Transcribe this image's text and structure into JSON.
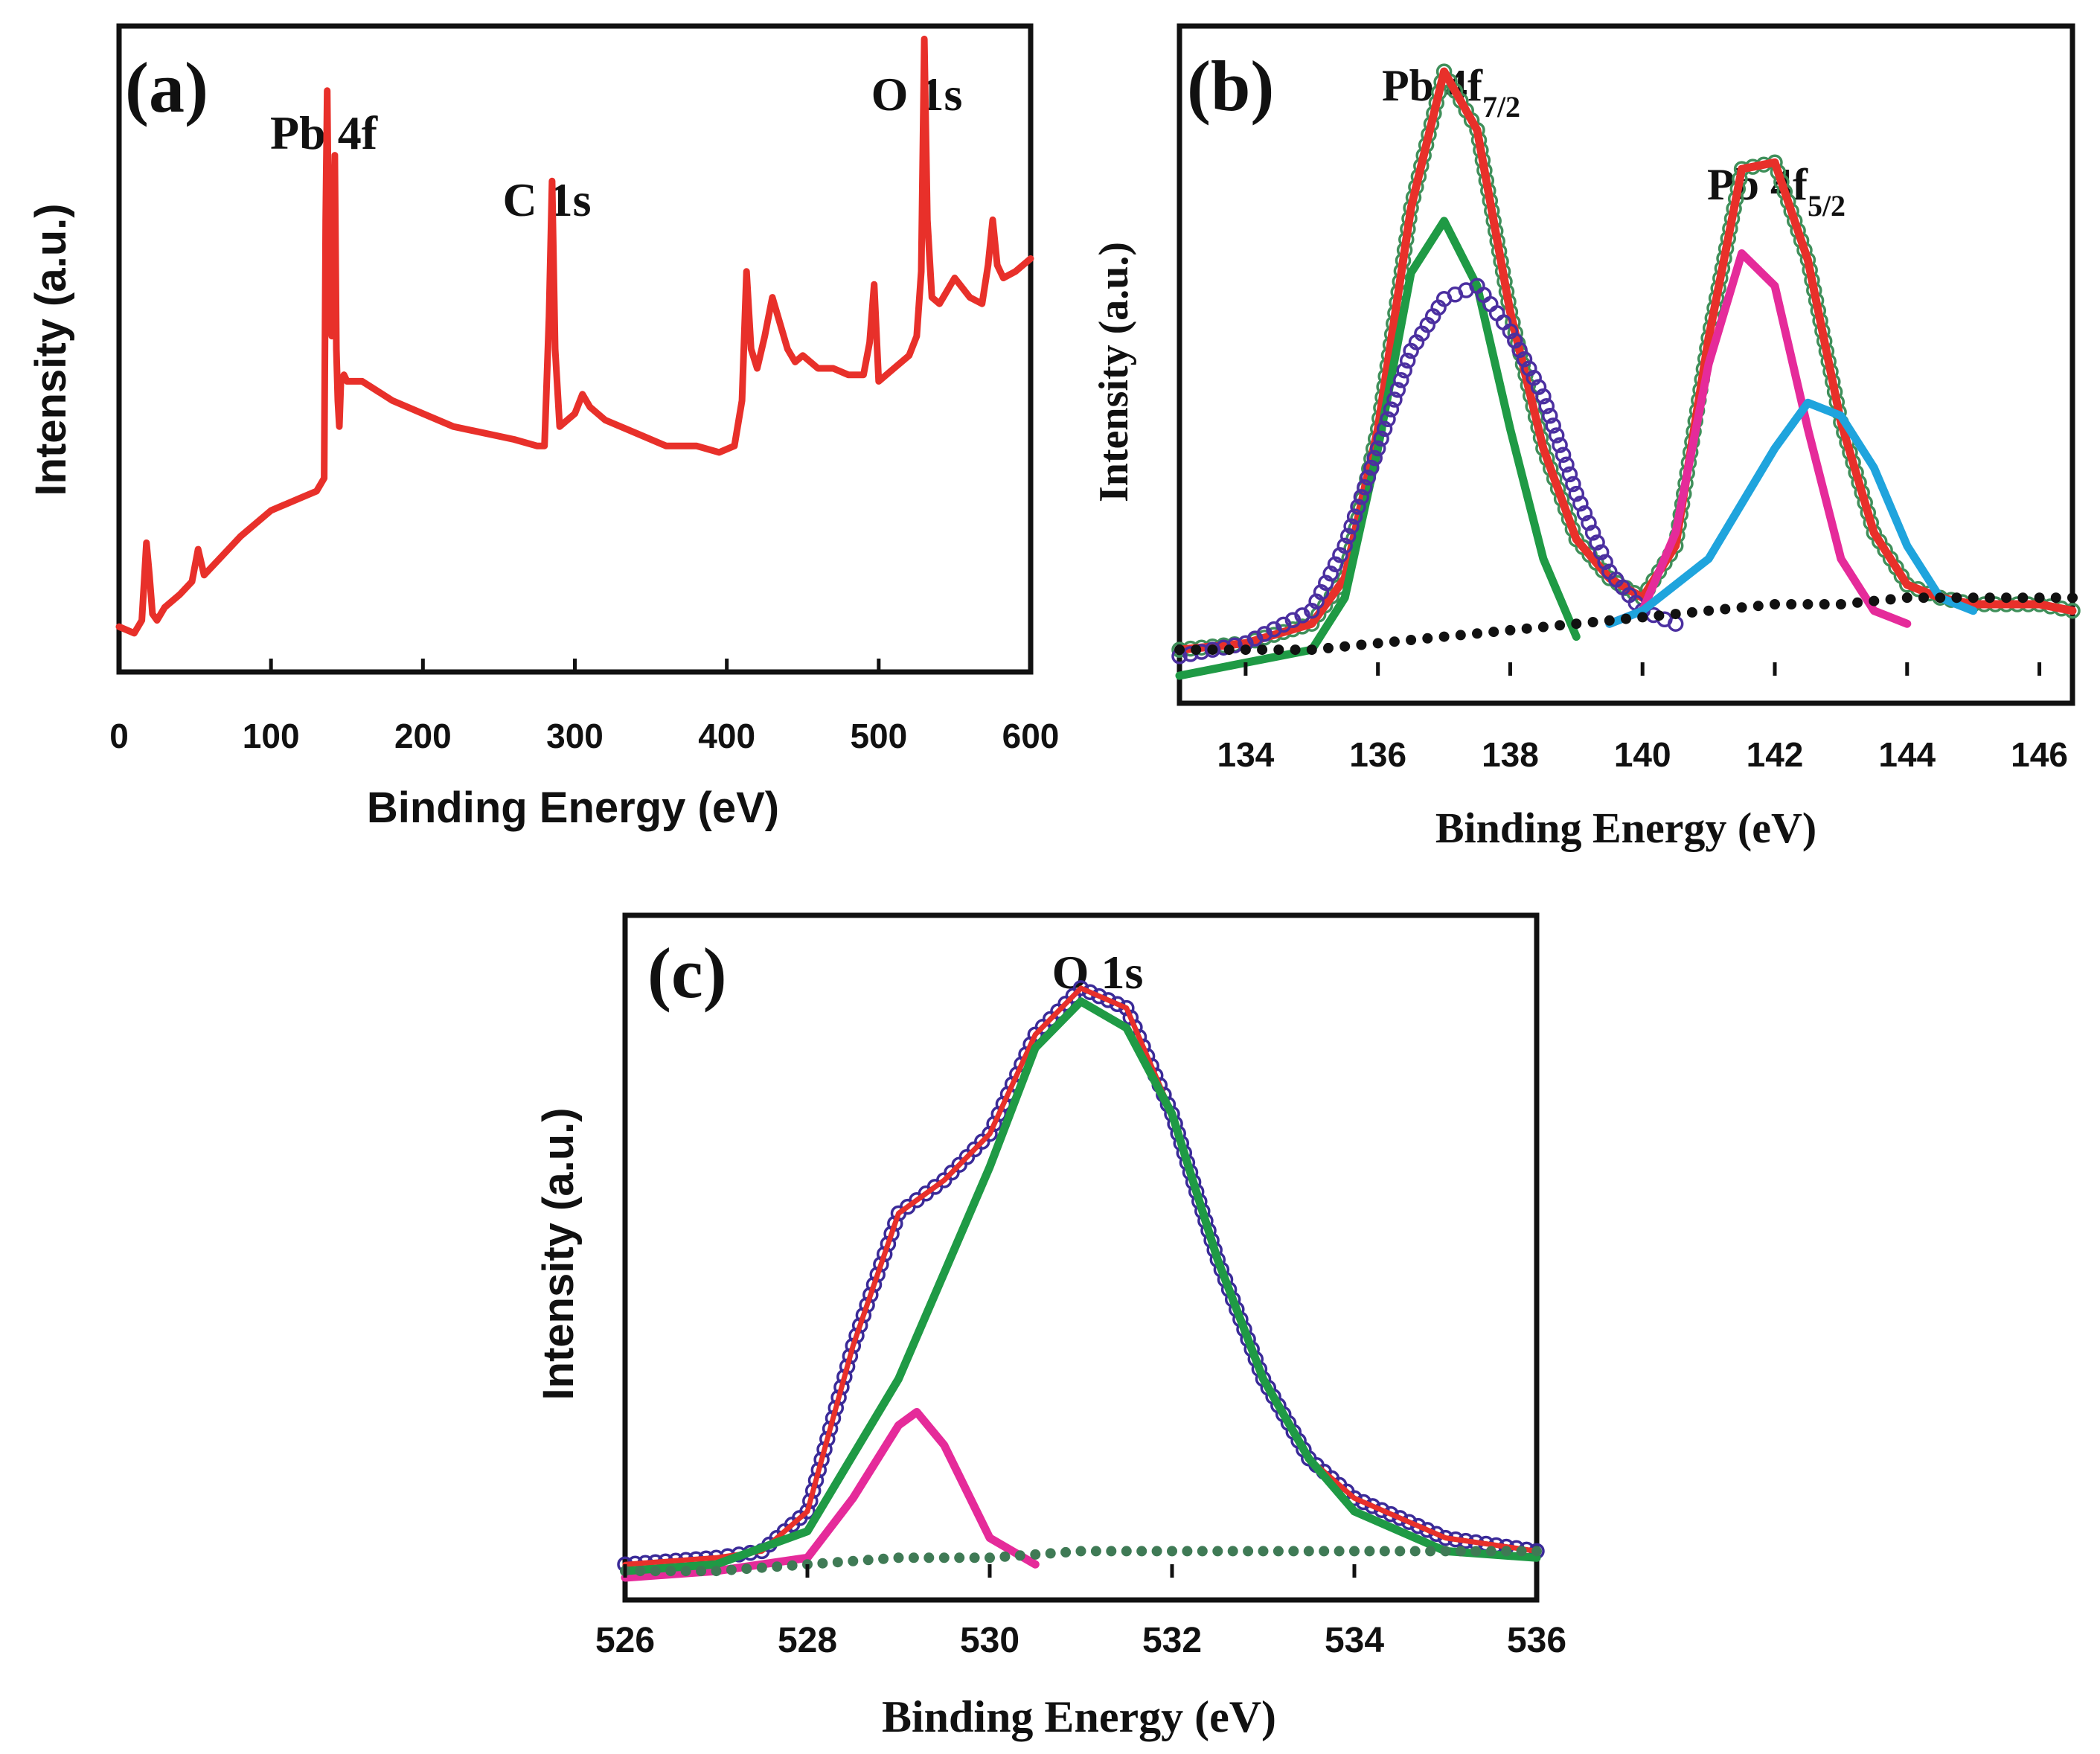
{
  "chart_data": [
    {
      "panel": "(a)",
      "type": "line",
      "title": "",
      "xlabel": "Binding Energy (eV)",
      "ylabel": "Intensity (a.u.)",
      "xlim": [
        0,
        600
      ],
      "ylim": [
        0,
        100
      ],
      "xticks": [
        0,
        100,
        200,
        300,
        400,
        500,
        600
      ],
      "y_tick_labels": false,
      "grid": false,
      "annotations": [
        {
          "text": "Pb 4f",
          "x": 140
        },
        {
          "text": "C 1s",
          "x": 285
        },
        {
          "text": "O 1s",
          "x": 530
        }
      ],
      "series": [
        {
          "name": "survey spectrum",
          "color": "#e8302a",
          "style": "line",
          "x": [
            0,
            10,
            15,
            18,
            20,
            22,
            25,
            30,
            40,
            48,
            52,
            56,
            60,
            80,
            100,
            120,
            130,
            135,
            136,
            137,
            138,
            140,
            142,
            143,
            144,
            145,
            146,
            148,
            150,
            160,
            180,
            200,
            220,
            240,
            260,
            275,
            280,
            283,
            285,
            287,
            290,
            300,
            305,
            310,
            320,
            340,
            360,
            380,
            395,
            405,
            410,
            413,
            416,
            420,
            425,
            430,
            435,
            440,
            445,
            450,
            460,
            470,
            480,
            490,
            494,
            497,
            500,
            510,
            520,
            525,
            528,
            530,
            532,
            535,
            540,
            550,
            560,
            568,
            572,
            575,
            578,
            582,
            590,
            600
          ],
          "values": [
            7,
            6,
            8,
            20,
            15,
            9,
            8,
            10,
            12,
            14,
            19,
            15,
            16,
            21,
            25,
            27,
            28,
            30,
            70,
            90,
            65,
            52,
            80,
            50,
            42,
            38,
            45,
            46,
            45,
            45,
            42,
            40,
            38,
            37,
            36,
            35,
            35,
            55,
            76,
            50,
            38,
            40,
            43,
            41,
            39,
            37,
            35,
            35,
            34,
            35,
            42,
            62,
            50,
            47,
            52,
            58,
            54,
            50,
            48,
            49,
            47,
            47,
            46,
            46,
            51,
            60,
            45,
            47,
            49,
            52,
            62,
            98,
            70,
            58,
            57,
            61,
            58,
            57,
            63,
            70,
            63,
            61,
            62,
            64
          ]
        }
      ]
    },
    {
      "panel": "(b)",
      "type": "line",
      "title": "",
      "xlabel": "Binding Energy (eV)",
      "ylabel": "Intensity (a.u.)",
      "xlim": [
        133,
        146.5
      ],
      "ylim": [
        0,
        100
      ],
      "xticks": [
        134,
        136,
        138,
        140,
        142,
        144,
        146
      ],
      "y_tick_labels": false,
      "grid": false,
      "annotations": [
        {
          "text": "Pb 4f",
          "sub": "7/2",
          "x": 137.1
        },
        {
          "text": "Pb 4f",
          "sub": "5/2",
          "x": 142.0
        }
      ],
      "series": [
        {
          "name": "raw data",
          "color": "#3f8f5a",
          "style": "open-circles",
          "x": [
            133,
            134,
            135,
            135.5,
            136,
            136.5,
            137,
            137.5,
            138,
            138.5,
            139,
            139.5,
            140,
            140.5,
            141,
            141.5,
            142,
            142.5,
            143,
            143.5,
            144,
            144.5,
            145,
            146,
            146.5
          ],
          "values": [
            4,
            5,
            8,
            15,
            38,
            72,
            93,
            84,
            56,
            35,
            21,
            15,
            12,
            20,
            52,
            78,
            79,
            64,
            39,
            22,
            14,
            12,
            11,
            11,
            10
          ]
        },
        {
          "name": "envelope fit",
          "color": "#e8302a",
          "style": "thick-line",
          "x": [
            133,
            134,
            135,
            135.5,
            136,
            136.5,
            137,
            137.5,
            138,
            138.5,
            139,
            139.5,
            140,
            140.5,
            141,
            141.5,
            142,
            142.5,
            143,
            143.5,
            144,
            144.5,
            145,
            146,
            146.5
          ],
          "values": [
            4,
            5,
            8,
            15,
            38,
            72,
            93,
            84,
            56,
            35,
            21,
            15,
            12,
            20,
            52,
            78,
            79,
            64,
            39,
            22,
            14,
            12,
            11,
            11,
            10
          ]
        },
        {
          "name": "Pb 4f7/2 component 1",
          "color": "#1f9a45",
          "style": "thick-line",
          "x": [
            133,
            134,
            135,
            135.5,
            136,
            136.5,
            137,
            137.5,
            138,
            138.5,
            139
          ],
          "values": [
            0,
            2,
            4,
            12,
            35,
            62,
            70,
            60,
            38,
            18,
            6
          ]
        },
        {
          "name": "Pb 4f7/2 component 2",
          "color": "#4b2fa0",
          "style": "open-circles",
          "x": [
            133,
            134,
            135,
            135.5,
            136,
            136.5,
            137,
            137.5,
            138,
            138.5,
            139,
            139.5,
            140,
            140.5
          ],
          "values": [
            3,
            5,
            10,
            20,
            35,
            50,
            58,
            60,
            53,
            43,
            28,
            16,
            10,
            8
          ]
        },
        {
          "name": "Pb 4f5/2 component 1",
          "color": "#e52b9a",
          "style": "thick-line",
          "x": [
            139.5,
            140,
            140.5,
            141,
            141.5,
            142,
            142.5,
            143,
            143.5,
            144
          ],
          "values": [
            8,
            10,
            22,
            48,
            65,
            60,
            38,
            18,
            10,
            8
          ]
        },
        {
          "name": "Pb 4f5/2 component 2",
          "color": "#1fa4dd",
          "style": "thick-line",
          "x": [
            139.5,
            140,
            141,
            142,
            142.5,
            143,
            143.5,
            144,
            144.5,
            145
          ],
          "values": [
            8,
            10,
            18,
            35,
            42,
            40,
            32,
            20,
            12,
            10
          ]
        },
        {
          "name": "background",
          "color": "#111111",
          "style": "filled-dots",
          "x": [
            133,
            134,
            135,
            136,
            137,
            138,
            139,
            140,
            141,
            142,
            143,
            144,
            145,
            146,
            146.5
          ],
          "values": [
            4,
            4,
            4,
            5,
            6,
            7,
            8,
            9,
            10,
            11,
            11,
            12,
            12,
            12,
            12
          ]
        }
      ]
    },
    {
      "panel": "(c)",
      "type": "line",
      "title": "",
      "xlabel": "Binding Energy (eV)",
      "ylabel": "Intensity (a.u.)",
      "xlim": [
        526,
        536
      ],
      "ylim": [
        0,
        100
      ],
      "xticks": [
        526,
        528,
        530,
        532,
        534,
        536
      ],
      "y_tick_labels": false,
      "grid": false,
      "annotations": [
        {
          "text": "O 1s",
          "x": 531.2
        }
      ],
      "series": [
        {
          "name": "raw data",
          "color": "#3a2a98",
          "style": "open-circles",
          "x": [
            526,
            527,
            527.5,
            528,
            528.5,
            529,
            529.5,
            530,
            530.5,
            531,
            531.5,
            532,
            532.5,
            533,
            533.5,
            534,
            535,
            536
          ],
          "values": [
            2,
            3,
            4,
            10,
            35,
            55,
            60,
            67,
            82,
            89,
            86,
            70,
            48,
            30,
            18,
            12,
            6,
            4
          ]
        },
        {
          "name": "envelope fit",
          "color": "#e8302a",
          "style": "thin-line",
          "x": [
            526,
            527,
            527.5,
            528,
            528.5,
            529,
            529.5,
            530,
            530.5,
            531,
            531.5,
            532,
            532.5,
            533,
            533.5,
            534,
            535,
            536
          ],
          "values": [
            2,
            3,
            4,
            10,
            35,
            55,
            60,
            67,
            82,
            89,
            86,
            70,
            48,
            30,
            18,
            12,
            6,
            4
          ]
        },
        {
          "name": "O 1s component 1",
          "color": "#e52b9a",
          "style": "thick-line",
          "x": [
            526,
            527,
            528,
            528.5,
            529,
            529.2,
            529.5,
            530,
            530.5
          ],
          "values": [
            0,
            1,
            3,
            12,
            23,
            25,
            20,
            6,
            2
          ]
        },
        {
          "name": "O 1s component 2",
          "color": "#1f9a45",
          "style": "thick-line",
          "x": [
            526,
            527,
            528,
            529,
            530,
            530.5,
            531,
            531.5,
            532,
            532.5,
            533,
            533.5,
            534,
            535,
            536
          ],
          "values": [
            1,
            2,
            7,
            30,
            62,
            80,
            87,
            83,
            70,
            48,
            30,
            18,
            10,
            4,
            3
          ]
        },
        {
          "name": "background",
          "color": "#3f7a55",
          "style": "filled-dots",
          "x": [
            526,
            527,
            528,
            529,
            530,
            531,
            532,
            533,
            534,
            535,
            536
          ],
          "values": [
            1,
            1,
            2,
            3,
            3,
            4,
            4,
            4,
            4,
            4,
            4
          ]
        }
      ]
    }
  ]
}
